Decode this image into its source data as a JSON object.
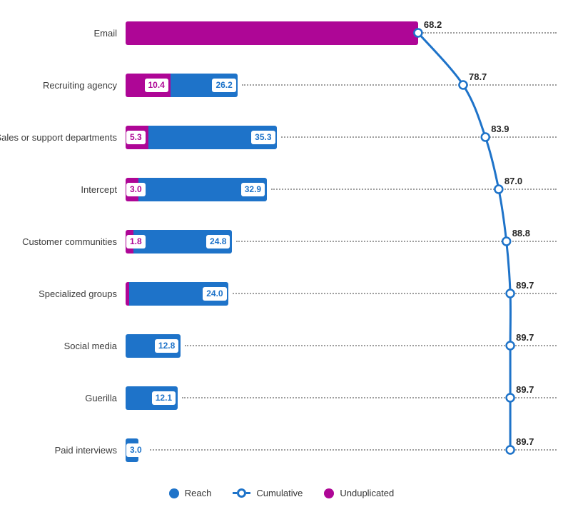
{
  "colors": {
    "reach_blue": "#1E73C9",
    "unduplicated_magenta": "#AE0696",
    "cumulative_line": "#1E73C9",
    "marker_fill": "#FFFFFF",
    "category_text": "#3B3B3B",
    "cumulative_label_text": "#262626",
    "leader_dots": "#9E9E9E",
    "background": "#FFFFFF"
  },
  "legend": {
    "items": [
      {
        "label": "Reach",
        "marker": "solid-dot",
        "color": "#1E73C9"
      },
      {
        "label": "Cumulative",
        "marker": "open-ring",
        "color": "#1E73C9"
      },
      {
        "label": "Unduplicated",
        "marker": "solid-dot",
        "color": "#AE0696"
      }
    ]
  },
  "chart_data": {
    "type": "bar",
    "subtype": "pareto-horizontal-stacked-with-cumulative-line",
    "orientation": "horizontal",
    "title": "",
    "xlabel": "",
    "ylabel": "",
    "xlim": [
      0,
      101
    ],
    "grid": "dotted-row-leader-lines",
    "legend_position": "bottom-center",
    "categories": [
      "Email",
      "Recruiting agency",
      "Sales or support departments",
      "Intercept",
      "Customer communities",
      "Specialized groups",
      "Social media",
      "Guerilla",
      "Paid interviews"
    ],
    "series": [
      {
        "name": "Unduplicated",
        "role": "bar-segment-left",
        "color": "#AE0696",
        "values": [
          68.2,
          10.4,
          5.3,
          3.0,
          1.8,
          0.9,
          0,
          0,
          0
        ],
        "labels": [
          "",
          "10.4",
          "5.3",
          "3.0",
          "1.8",
          "",
          "",
          "",
          ""
        ]
      },
      {
        "name": "Reach",
        "role": "bar-total",
        "color": "#1E73C9",
        "values": [
          68.2,
          26.2,
          35.3,
          32.9,
          24.8,
          24.0,
          12.8,
          12.1,
          3.0
        ],
        "labels": [
          "",
          "26.2",
          "35.3",
          "32.9",
          "24.8",
          "24.0",
          "12.8",
          "12.1",
          "3.0"
        ]
      },
      {
        "name": "Cumulative",
        "role": "line-open-markers",
        "color": "#1E73C9",
        "values": [
          68.2,
          78.7,
          83.9,
          87.0,
          88.8,
          89.7,
          89.7,
          89.7,
          89.7
        ],
        "labels": [
          "68.2",
          "78.7",
          "83.9",
          "87.0",
          "88.8",
          "89.7",
          "89.7",
          "89.7",
          "89.7"
        ]
      }
    ]
  }
}
